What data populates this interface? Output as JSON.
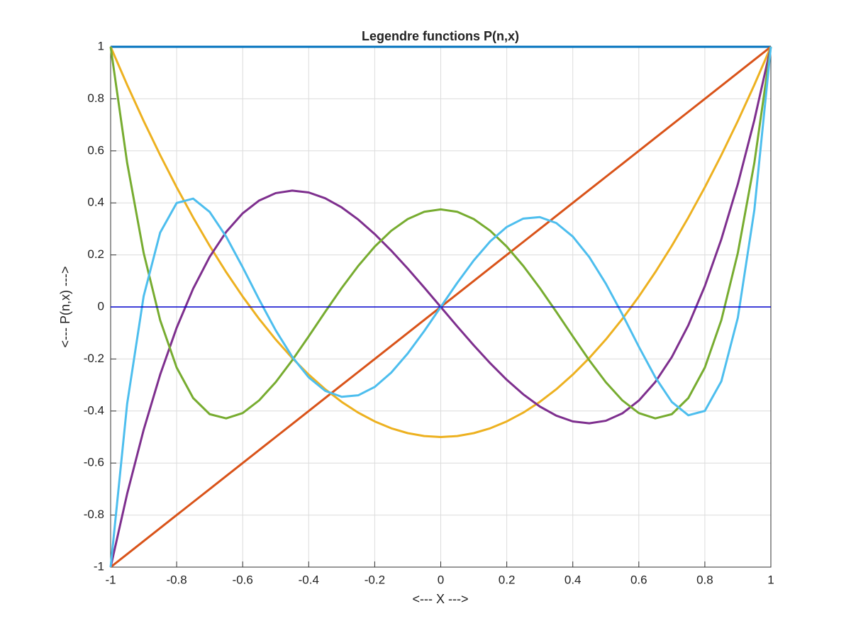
{
  "chart_data": {
    "type": "line",
    "title": "Legendre functions P(n,x)",
    "x_label": "<--- X --->",
    "y_label": "<--- P(n,x) --->",
    "x": [
      -1,
      -0.95,
      -0.9,
      -0.85,
      -0.8,
      -0.75,
      -0.7,
      -0.65,
      -0.6,
      -0.55,
      -0.5,
      -0.45,
      -0.4,
      -0.35,
      -0.3,
      -0.25,
      -0.2,
      -0.15,
      -0.1,
      -0.05,
      0,
      0.05,
      0.1,
      0.15,
      0.2,
      0.25,
      0.3,
      0.35,
      0.4,
      0.45,
      0.5,
      0.55,
      0.6,
      0.65,
      0.7,
      0.75,
      0.8,
      0.85,
      0.9,
      0.95,
      1
    ],
    "series": [
      {
        "color": "#0072bd",
        "values": [
          1,
          1,
          1,
          1,
          1,
          1,
          1,
          1,
          1,
          1,
          1,
          1,
          1,
          1,
          1,
          1,
          1,
          1,
          1,
          1,
          1,
          1,
          1,
          1,
          1,
          1,
          1,
          1,
          1,
          1,
          1,
          1,
          1,
          1,
          1,
          1,
          1,
          1,
          1,
          1,
          1
        ]
      },
      {
        "color": "#d95319",
        "values": [
          -1,
          -0.95,
          -0.9,
          -0.85,
          -0.8,
          -0.75,
          -0.7,
          -0.65,
          -0.6,
          -0.55,
          -0.5,
          -0.45,
          -0.4,
          -0.35,
          -0.3,
          -0.25,
          -0.2,
          -0.15,
          -0.1,
          -0.05,
          0,
          0.05,
          0.1,
          0.15,
          0.2,
          0.25,
          0.3,
          0.35,
          0.4,
          0.45,
          0.5,
          0.55,
          0.6,
          0.65,
          0.7,
          0.75,
          0.8,
          0.85,
          0.9,
          0.95,
          1
        ]
      },
      {
        "color": "#edb120",
        "values": [
          1,
          0.8538,
          0.715,
          0.5838,
          0.46,
          0.3438,
          0.235,
          0.1338,
          0.04,
          -0.0463,
          -0.125,
          -0.1963,
          -0.26,
          -0.3163,
          -0.365,
          -0.4063,
          -0.44,
          -0.4663,
          -0.485,
          -0.4963,
          -0.5,
          -0.4963,
          -0.485,
          -0.4663,
          -0.44,
          -0.4063,
          -0.365,
          -0.3163,
          -0.26,
          -0.1963,
          -0.125,
          -0.0463,
          0.04,
          0.1338,
          0.235,
          0.3438,
          0.46,
          0.5838,
          0.715,
          0.8538,
          1
        ]
      },
      {
        "color": "#7e2f8e",
        "values": [
          -1,
          -0.7184,
          -0.4725,
          -0.2603,
          -0.08,
          0.0703,
          0.1925,
          0.2884,
          0.36,
          0.4091,
          0.4375,
          0.4472,
          0.44,
          0.4178,
          0.3825,
          0.3359,
          0.28,
          0.2166,
          0.1475,
          0.0747,
          0,
          -0.0747,
          -0.1475,
          -0.2166,
          -0.28,
          -0.3359,
          -0.3825,
          -0.4178,
          -0.44,
          -0.4472,
          -0.4375,
          -0.4091,
          -0.36,
          -0.2884,
          -0.1925,
          -0.0703,
          0.08,
          0.2603,
          0.4725,
          0.7184,
          1
        ]
      },
      {
        "color": "#77ac30",
        "values": [
          1,
          0.5541,
          0.2079,
          -0.0506,
          -0.233,
          -0.3501,
          -0.4121,
          -0.4284,
          -0.408,
          -0.359,
          -0.2891,
          -0.205,
          -0.113,
          -0.0187,
          0.0729,
          0.1577,
          0.232,
          0.2928,
          0.3379,
          0.3657,
          0.375,
          0.3657,
          0.3379,
          0.2928,
          0.232,
          0.1577,
          0.0729,
          -0.0187,
          -0.113,
          -0.205,
          -0.2891,
          -0.359,
          -0.408,
          -0.4284,
          -0.4121,
          -0.3501,
          -0.233,
          -0.0506,
          0.2079,
          0.5541,
          1
        ]
      },
      {
        "color": "#4dbeee",
        "values": [
          -1,
          -0.3727,
          0.0411,
          0.2857,
          0.3995,
          0.4164,
          0.3652,
          0.2705,
          0.1526,
          0.0282,
          -0.0898,
          -0.1917,
          -0.2706,
          -0.3225,
          -0.3454,
          -0.3397,
          -0.3075,
          -0.2523,
          -0.1788,
          -0.0927,
          0,
          0.0927,
          0.1788,
          0.2523,
          0.3075,
          0.3397,
          0.3454,
          0.3225,
          0.2706,
          0.1917,
          0.0898,
          -0.0282,
          -0.1526,
          -0.2705,
          -0.3652,
          -0.4164,
          -0.3995,
          -0.2857,
          -0.0411,
          0.3727,
          1
        ]
      }
    ],
    "reference_line": {
      "value": 0,
      "color": "#0000cc"
    },
    "xlim": [
      -1,
      1
    ],
    "ylim": [
      -1,
      1
    ],
    "xticks": [
      -1,
      -0.8,
      -0.6,
      -0.4,
      -0.2,
      0,
      0.2,
      0.4,
      0.6,
      0.8,
      1
    ],
    "yticks": [
      -1,
      -0.8,
      -0.6,
      -0.4,
      -0.2,
      0,
      0.2,
      0.4,
      0.6,
      0.8,
      1
    ],
    "grid": true
  }
}
